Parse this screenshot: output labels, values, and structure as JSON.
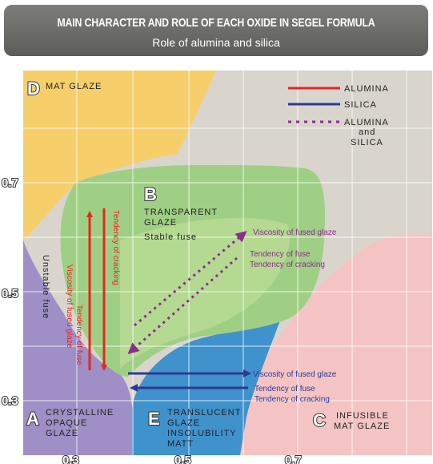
{
  "header": {
    "title": "MAIN CHARACTER AND ROLE OF EACH OXIDE IN SEGEL FORMULA",
    "subtitle": "Role of alumina and silica"
  },
  "regions": {
    "d": {
      "letter": "D",
      "label": "MAT GLAZE"
    },
    "b": {
      "letter": "B",
      "label_line1": "TRANSPARENT",
      "label_line2": "GLAZE",
      "label_line3": "Stable fuse"
    },
    "a": {
      "letter": "A",
      "label_line1": "CRYSTALLINE",
      "label_line2": "OPAQUE",
      "label_line3": "GLAZE"
    },
    "e": {
      "letter": "E",
      "label_line1": "TRANSLUCENT",
      "label_line2": "GLAZE",
      "label_line3": "INSOLUBILITY",
      "label_line4": "MATT"
    },
    "c": {
      "letter": "C",
      "label_line1": "INFUSIBLE",
      "label_line2": "MAT GLAZE"
    }
  },
  "legend": {
    "alumina": "ALUMINA",
    "silica": "SILICA",
    "both_line1": "ALUMINA",
    "both_line2": "and",
    "both_line3": "SILICA",
    "colors": {
      "alumina": "#e8261f",
      "silica": "#2d3a93",
      "both": "#8a2e8c"
    }
  },
  "annotations": {
    "unstable_fuse": "Unstable fuse",
    "tendency_cracking_v": "Tendency of cracking",
    "viscosity_v": "Viscosity of fused glaze",
    "tendency_fuse_v": "Tendency of fuse",
    "diag_viscosity": "Viscosity of fused glaze",
    "diag_fuse": "Tendency of fuse",
    "diag_cracking": "Tendency of cracking",
    "h_viscosity": "Viscosity of fused glaze",
    "h_fuse": "Tendency of fuse",
    "h_cracking": "Tendency of cracking"
  },
  "axes": {
    "y_ticks": [
      "0.7",
      "0.5",
      "0.3"
    ],
    "x_ticks": [
      "0.3",
      "0.5",
      "0.7"
    ]
  }
}
